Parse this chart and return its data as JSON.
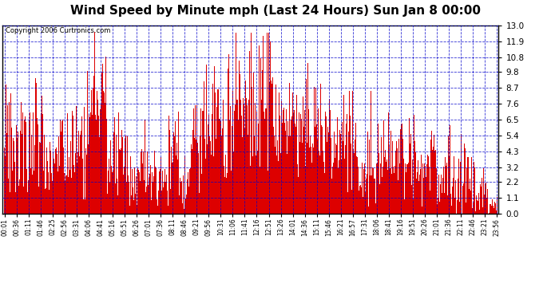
{
  "title": "Wind Speed by Minute mph (Last 24 Hours) Sun Jan 8 00:00",
  "copyright": "Copyright 2006 Curtronics.com",
  "yticks": [
    0.0,
    1.1,
    2.2,
    3.2,
    4.3,
    5.4,
    6.5,
    7.6,
    8.7,
    9.8,
    10.8,
    11.9,
    13.0
  ],
  "xtick_labels": [
    "00:01",
    "00:36",
    "01:11",
    "01:46",
    "02:25",
    "02:56",
    "03:31",
    "04:06",
    "04:41",
    "05:16",
    "05:51",
    "06:26",
    "07:01",
    "07:36",
    "08:11",
    "08:46",
    "09:21",
    "09:56",
    "10:31",
    "11:06",
    "11:41",
    "12:16",
    "12:51",
    "13:26",
    "14:01",
    "14:36",
    "15:11",
    "15:46",
    "16:21",
    "16:57",
    "17:31",
    "18:06",
    "18:41",
    "19:16",
    "19:51",
    "20:26",
    "21:01",
    "21:36",
    "22:11",
    "22:46",
    "23:21",
    "23:56"
  ],
  "ymin": 0.0,
  "ymax": 13.0,
  "bar_color": "#dd0000",
  "background_color": "#ffffff",
  "grid_color": "#0000cc",
  "title_fontsize": 11,
  "copyright_fontsize": 6,
  "seed": 12345,
  "segments": [
    {
      "n": 120,
      "mean": 5.0,
      "std": 2.0,
      "vmin": 1.5,
      "vmax": 10.0
    },
    {
      "n": 60,
      "mean": 3.5,
      "std": 1.5,
      "vmin": 1.0,
      "vmax": 6.5
    },
    {
      "n": 60,
      "mean": 4.5,
      "std": 2.0,
      "vmin": 1.0,
      "vmax": 11.5
    },
    {
      "n": 60,
      "mean": 7.5,
      "std": 2.5,
      "vmin": 1.5,
      "vmax": 13.0
    },
    {
      "n": 60,
      "mean": 3.5,
      "std": 1.5,
      "vmin": 1.0,
      "vmax": 7.0
    },
    {
      "n": 30,
      "mean": 2.5,
      "std": 1.2,
      "vmin": 0.5,
      "vmax": 5.5
    },
    {
      "n": 30,
      "mean": 3.5,
      "std": 1.8,
      "vmin": 1.0,
      "vmax": 6.5
    },
    {
      "n": 60,
      "mean": 2.5,
      "std": 1.0,
      "vmin": 0.5,
      "vmax": 5.0
    },
    {
      "n": 30,
      "mean": 4.5,
      "std": 1.5,
      "vmin": 1.5,
      "vmax": 7.5
    },
    {
      "n": 30,
      "mean": 2.0,
      "std": 1.0,
      "vmin": 0.3,
      "vmax": 4.0
    },
    {
      "n": 30,
      "mean": 4.0,
      "std": 1.8,
      "vmin": 1.0,
      "vmax": 7.5
    },
    {
      "n": 90,
      "mean": 6.5,
      "std": 2.5,
      "vmin": 2.0,
      "vmax": 11.0
    },
    {
      "n": 120,
      "mean": 7.5,
      "std": 2.5,
      "vmin": 3.0,
      "vmax": 12.5
    },
    {
      "n": 120,
      "mean": 6.0,
      "std": 2.0,
      "vmin": 2.0,
      "vmax": 11.0
    },
    {
      "n": 60,
      "mean": 5.5,
      "std": 2.0,
      "vmin": 1.5,
      "vmax": 9.0
    },
    {
      "n": 60,
      "mean": 5.0,
      "std": 2.0,
      "vmin": 1.5,
      "vmax": 8.5
    },
    {
      "n": 60,
      "mean": 4.0,
      "std": 2.0,
      "vmin": 0.5,
      "vmax": 8.5
    },
    {
      "n": 60,
      "mean": 3.5,
      "std": 1.5,
      "vmin": 0.5,
      "vmax": 7.0
    },
    {
      "n": 60,
      "mean": 4.5,
      "std": 2.0,
      "vmin": 1.0,
      "vmax": 8.5
    },
    {
      "n": 60,
      "mean": 3.5,
      "std": 1.5,
      "vmin": 0.5,
      "vmax": 7.0
    },
    {
      "n": 60,
      "mean": 2.5,
      "std": 1.5,
      "vmin": 0.0,
      "vmax": 6.5
    },
    {
      "n": 60,
      "mean": 2.5,
      "std": 1.5,
      "vmin": 0.0,
      "vmax": 5.5
    },
    {
      "n": 30,
      "mean": 1.5,
      "std": 0.8,
      "vmin": 0.0,
      "vmax": 4.0
    },
    {
      "n": 30,
      "mean": 0.5,
      "std": 0.5,
      "vmin": 0.0,
      "vmax": 2.0
    },
    {
      "n": 60,
      "mean": 0.8,
      "std": 0.6,
      "vmin": 0.0,
      "vmax": 2.5
    },
    {
      "n": 30,
      "mean": 1.5,
      "std": 0.8,
      "vmin": 0.0,
      "vmax": 3.5
    },
    {
      "n": 30,
      "mean": 0.3,
      "std": 0.3,
      "vmin": 0.0,
      "vmax": 1.0
    }
  ]
}
